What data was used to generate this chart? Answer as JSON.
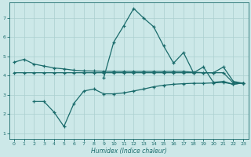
{
  "xlabel": "Humidex (Indice chaleur)",
  "bg_color": "#cce8e8",
  "line_color": "#1a6b6b",
  "grid_color": "#aacfcf",
  "ylim": [
    0.7,
    7.8
  ],
  "xlim": [
    -0.5,
    23.5
  ],
  "yticks": [
    1,
    2,
    3,
    4,
    5,
    6,
    7
  ],
  "xticks": [
    0,
    1,
    2,
    3,
    4,
    5,
    6,
    7,
    8,
    9,
    10,
    11,
    12,
    13,
    14,
    15,
    16,
    17,
    18,
    19,
    20,
    21,
    22,
    23
  ],
  "upper_x": [
    0,
    1,
    2,
    3,
    4,
    5,
    6,
    7,
    8,
    9,
    10,
    11,
    12,
    13,
    14,
    15,
    16,
    17,
    18,
    19,
    20,
    21,
    22,
    23
  ],
  "upper_y": [
    4.7,
    4.85,
    4.6,
    4.5,
    4.4,
    4.35,
    4.28,
    4.25,
    4.24,
    4.23,
    4.22,
    4.22,
    4.22,
    4.22,
    4.22,
    4.22,
    4.22,
    4.22,
    4.18,
    4.15,
    4.15,
    4.45,
    3.7,
    3.6
  ],
  "flat_x": [
    0,
    1,
    2,
    3,
    4,
    5,
    6,
    7,
    8,
    9,
    10,
    11,
    12,
    13,
    14,
    15,
    16,
    17,
    18,
    19,
    20,
    21,
    22,
    23
  ],
  "flat_y": [
    4.15,
    4.15,
    4.15,
    4.15,
    4.15,
    4.15,
    4.15,
    4.15,
    4.15,
    4.15,
    4.15,
    4.15,
    4.15,
    4.15,
    4.15,
    4.15,
    4.15,
    4.15,
    4.15,
    4.15,
    4.15,
    4.15,
    3.62,
    3.62
  ],
  "peak_x": [
    9,
    10,
    11,
    12,
    13,
    14,
    15,
    16,
    17,
    18,
    19,
    20,
    21,
    22,
    23
  ],
  "peak_y": [
    3.9,
    5.75,
    6.6,
    7.5,
    7.0,
    6.55,
    5.55,
    4.65,
    5.2,
    4.15,
    4.45,
    3.65,
    3.7,
    3.55,
    3.62
  ],
  "lower_x": [
    2,
    3,
    4,
    5,
    6,
    7,
    8,
    9,
    10,
    11,
    12,
    13,
    14,
    15,
    16,
    17,
    18,
    19,
    20,
    21,
    22,
    23
  ],
  "lower_y": [
    2.65,
    2.65,
    2.1,
    1.35,
    2.55,
    3.2,
    3.3,
    3.05,
    3.05,
    3.1,
    3.2,
    3.3,
    3.42,
    3.5,
    3.55,
    3.58,
    3.6,
    3.6,
    3.62,
    3.65,
    3.55,
    3.62
  ]
}
